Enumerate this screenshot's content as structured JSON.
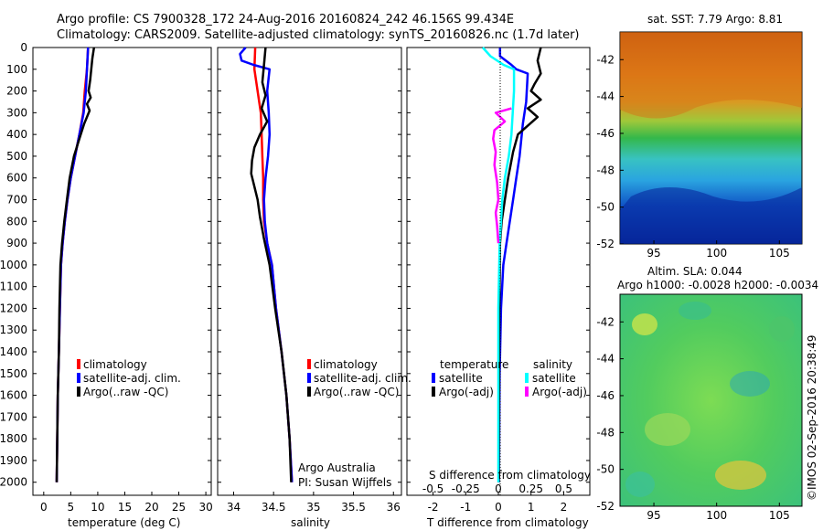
{
  "header": {
    "line1": "Argo profile: CS 7900328_172 24-Aug-2016 20160824_242 46.156S 99.434E",
    "line2": "Climatology: CARS2009. Satellite-adjusted climatology: synTS_20160826.nc (1.7d later)"
  },
  "depth_ticks": [
    "0",
    "100",
    "200",
    "300",
    "400",
    "500",
    "600",
    "700",
    "800",
    "900",
    "1000",
    "1100",
    "1200",
    "1300",
    "1400",
    "1500",
    "1600",
    "1700",
    "1800",
    "1900",
    "2000"
  ],
  "colors": {
    "climatology": "#ff0000",
    "satellite": "#0000ff",
    "argo": "#000000",
    "salinity_sat": "#00ffff",
    "salinity_argo": "#ff00ff"
  },
  "panel_temp": {
    "xlabel": "temperature (deg C)",
    "xticks": [
      "0",
      "5",
      "10",
      "15",
      "20",
      "25",
      "30"
    ],
    "legend": [
      "climatology",
      "satellite-adj. clim.",
      "Argo(..raw -QC)"
    ]
  },
  "panel_sal": {
    "xlabel": "salinity",
    "xticks": [
      "34",
      "34.5",
      "35",
      "35.5",
      "36"
    ],
    "legend": [
      "climatology",
      "satellite-adj. clim.",
      "Argo(..raw -QC)"
    ],
    "note1": "Argo Australia",
    "note2": "PI: Susan Wijffels"
  },
  "panel_diff": {
    "xlabel": "T difference from climatology",
    "toplabel": "S difference from climatology",
    "xticks_t": [
      "-2",
      "-1",
      "0",
      "1",
      "2"
    ],
    "xticks_s": [
      "-0.5",
      "-0.25",
      "0",
      "0.25",
      "0.5"
    ],
    "legend_t_title": "temperature",
    "legend_s_title": "salinity",
    "legend_t": [
      "satellite",
      "Argo(-adj)"
    ],
    "legend_s": [
      "satellite",
      "Argo(-adj)"
    ]
  },
  "map_sst": {
    "title": "sat. SST: 7.79 Argo: 8.81",
    "yticks": [
      "-42",
      "-44",
      "-46",
      "-48",
      "-50",
      "-52"
    ],
    "xticks": [
      "95",
      "100",
      "105"
    ]
  },
  "map_sla": {
    "title1": "Altim. SLA: 0.044",
    "title2": "Argo h1000: -0.0028 h2000: -0.0034",
    "yticks": [
      "-42",
      "-44",
      "-46",
      "-48",
      "-50",
      "-52"
    ],
    "xticks": [
      "95",
      "100",
      "105"
    ],
    "side_label": "©IMOS 02-Sep-2016 20:38:49"
  },
  "chart_data": [
    {
      "type": "line",
      "title": "",
      "xlabel": "temperature (deg C)",
      "ylabel": "",
      "xlim": [
        -2,
        31
      ],
      "ylim": [
        2060,
        0
      ],
      "series": [
        {
          "name": "climatology",
          "color": "#ff0000",
          "points": [
            [
              8.2,
              0
            ],
            [
              8.0,
              100
            ],
            [
              7.6,
              200
            ],
            [
              7.3,
              300
            ],
            [
              6.6,
              400
            ],
            [
              5.8,
              500
            ],
            [
              5.0,
              600
            ],
            [
              4.4,
              700
            ],
            [
              3.9,
              800
            ],
            [
              3.5,
              900
            ],
            [
              3.2,
              1000
            ],
            [
              3.0,
              1200
            ],
            [
              2.8,
              1400
            ],
            [
              2.6,
              1600
            ],
            [
              2.5,
              1800
            ],
            [
              2.4,
              2000
            ]
          ]
        },
        {
          "name": "satellite-adj. clim.",
          "color": "#0000ff",
          "points": [
            [
              8.2,
              0
            ],
            [
              8.0,
              100
            ],
            [
              7.8,
              200
            ],
            [
              7.4,
              300
            ],
            [
              6.6,
              400
            ],
            [
              5.8,
              500
            ],
            [
              5.0,
              600
            ],
            [
              4.4,
              700
            ],
            [
              3.9,
              800
            ],
            [
              3.5,
              900
            ],
            [
              3.2,
              1000
            ],
            [
              3.0,
              1200
            ],
            [
              2.8,
              1400
            ],
            [
              2.6,
              1600
            ],
            [
              2.5,
              1800
            ],
            [
              2.4,
              2000
            ]
          ]
        },
        {
          "name": "Argo(..raw -QC)",
          "color": "#000000",
          "points": [
            [
              9.3,
              0
            ],
            [
              9.0,
              50
            ],
            [
              8.8,
              100
            ],
            [
              8.6,
              150
            ],
            [
              8.3,
              200
            ],
            [
              8.7,
              230
            ],
            [
              8.0,
              260
            ],
            [
              8.5,
              290
            ],
            [
              7.5,
              350
            ],
            [
              6.6,
              420
            ],
            [
              5.6,
              500
            ],
            [
              4.8,
              600
            ],
            [
              4.3,
              700
            ],
            [
              3.8,
              800
            ],
            [
              3.4,
              900
            ],
            [
              3.1,
              1000
            ],
            [
              2.9,
              1200
            ],
            [
              2.8,
              1400
            ],
            [
              2.6,
              1600
            ],
            [
              2.5,
              1800
            ],
            [
              2.4,
              2000
            ]
          ]
        }
      ]
    },
    {
      "type": "line",
      "title": "",
      "xlabel": "salinity",
      "ylabel": "",
      "xlim": [
        33.8,
        36.1
      ],
      "ylim": [
        2060,
        0
      ],
      "series": [
        {
          "name": "climatology",
          "color": "#ff0000",
          "points": [
            [
              34.27,
              0
            ],
            [
              34.26,
              100
            ],
            [
              34.3,
              200
            ],
            [
              34.34,
              300
            ],
            [
              34.35,
              400
            ],
            [
              34.36,
              500
            ],
            [
              34.37,
              600
            ],
            [
              34.37,
              700
            ],
            [
              34.38,
              800
            ],
            [
              34.42,
              900
            ],
            [
              34.48,
              1000
            ],
            [
              34.53,
              1200
            ],
            [
              34.6,
              1400
            ],
            [
              34.66,
              1600
            ],
            [
              34.7,
              1800
            ],
            [
              34.73,
              2000
            ]
          ]
        },
        {
          "name": "satellite-adj. clim.",
          "color": "#0000ff",
          "points": [
            [
              34.15,
              0
            ],
            [
              34.08,
              30
            ],
            [
              34.1,
              60
            ],
            [
              34.25,
              80
            ],
            [
              34.45,
              100
            ],
            [
              34.42,
              200
            ],
            [
              34.44,
              300
            ],
            [
              34.45,
              400
            ],
            [
              34.43,
              500
            ],
            [
              34.4,
              600
            ],
            [
              34.38,
              700
            ],
            [
              34.39,
              800
            ],
            [
              34.42,
              900
            ],
            [
              34.48,
              1000
            ],
            [
              34.53,
              1200
            ],
            [
              34.6,
              1400
            ],
            [
              34.66,
              1600
            ],
            [
              34.7,
              1800
            ],
            [
              34.73,
              2000
            ]
          ]
        },
        {
          "name": "Argo(..raw -QC)",
          "color": "#000000",
          "points": [
            [
              34.4,
              0
            ],
            [
              34.38,
              80
            ],
            [
              34.36,
              160
            ],
            [
              34.4,
              220
            ],
            [
              34.35,
              280
            ],
            [
              34.42,
              340
            ],
            [
              34.33,
              400
            ],
            [
              34.26,
              460
            ],
            [
              34.23,
              520
            ],
            [
              34.22,
              580
            ],
            [
              34.26,
              640
            ],
            [
              34.3,
              700
            ],
            [
              34.33,
              780
            ],
            [
              34.38,
              880
            ],
            [
              34.45,
              1000
            ],
            [
              34.52,
              1200
            ],
            [
              34.6,
              1400
            ],
            [
              34.66,
              1600
            ],
            [
              34.7,
              1800
            ],
            [
              34.72,
              2000
            ]
          ]
        }
      ]
    },
    {
      "type": "line",
      "title": "",
      "xlabel": "T difference from climatology",
      "ylabel": "",
      "xlim": [
        -2.8,
        2.8
      ],
      "ylim": [
        2060,
        0
      ],
      "series": [
        {
          "name": "satellite",
          "color": "#0000ff",
          "points": [
            [
              0.05,
              0
            ],
            [
              0.05,
              40
            ],
            [
              0.4,
              80
            ],
            [
              0.55,
              100
            ],
            [
              0.9,
              120
            ],
            [
              0.85,
              250
            ],
            [
              0.75,
              350
            ],
            [
              0.65,
              500
            ],
            [
              0.55,
              600
            ],
            [
              0.45,
              700
            ],
            [
              0.35,
              800
            ],
            [
              0.25,
              900
            ],
            [
              0.15,
              1000
            ],
            [
              0.08,
              1200
            ],
            [
              0.04,
              1500
            ],
            [
              0.02,
              2000
            ]
          ]
        },
        {
          "name": "Argo(-adj)",
          "color": "#000000",
          "points": [
            [
              1.3,
              0
            ],
            [
              1.2,
              60
            ],
            [
              1.3,
              120
            ],
            [
              1.1,
              170
            ],
            [
              1.0,
              200
            ],
            [
              1.3,
              240
            ],
            [
              0.9,
              280
            ],
            [
              1.2,
              320
            ],
            [
              0.6,
              400
            ],
            [
              0.45,
              480
            ],
            [
              0.3,
              600
            ],
            [
              0.2,
              700
            ],
            [
              0.1,
              800
            ],
            [
              0.05,
              900
            ],
            [
              0.03,
              1200
            ],
            [
              0.02,
              1600
            ],
            [
              0.01,
              2000
            ]
          ]
        }
      ]
    },
    {
      "type": "line",
      "title": "",
      "xlabel": "S difference from climatology",
      "ylabel": "",
      "xlim": [
        -0.7,
        0.7
      ],
      "ylim": [
        2060,
        0
      ],
      "series": [
        {
          "name": "satellite",
          "color": "#00ffff",
          "points": [
            [
              -0.12,
              0
            ],
            [
              -0.06,
              40
            ],
            [
              0.04,
              80
            ],
            [
              0.12,
              100
            ],
            [
              0.12,
              200
            ],
            [
              0.11,
              300
            ],
            [
              0.1,
              400
            ],
            [
              0.08,
              500
            ],
            [
              0.05,
              600
            ],
            [
              0.03,
              700
            ],
            [
              0.02,
              800
            ],
            [
              0.01,
              900
            ],
            [
              0.0,
              1200
            ],
            [
              0.0,
              1500
            ],
            [
              0.0,
              2000
            ]
          ]
        },
        {
          "name": "Argo(-adj)",
          "color": "#ff00ff",
          "points": [
            [
              0.1,
              280
            ],
            [
              -0.02,
              300
            ],
            [
              0.05,
              340
            ],
            [
              -0.03,
              380
            ],
            [
              -0.04,
              420
            ],
            [
              -0.02,
              480
            ],
            [
              -0.03,
              540
            ],
            [
              -0.01,
              620
            ],
            [
              0.0,
              700
            ],
            [
              -0.02,
              760
            ],
            [
              -0.01,
              820
            ],
            [
              0.0,
              900
            ]
          ]
        }
      ]
    }
  ]
}
